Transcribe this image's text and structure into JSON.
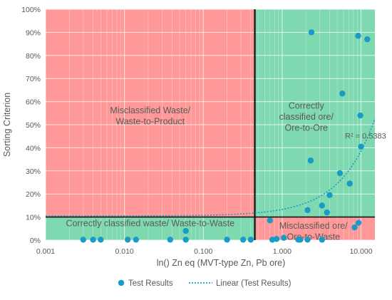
{
  "chart_data": {
    "type": "scatter",
    "xscale": "log",
    "xlim": [
      0.001,
      15
    ],
    "ylim": [
      0,
      100
    ],
    "xticks": [
      0.001,
      0.01,
      0.1,
      1,
      10
    ],
    "xtick_labels": [
      "0.001",
      "0.010",
      "0.100",
      "1.000",
      "10.000"
    ],
    "yticks": [
      0,
      10,
      20,
      30,
      40,
      50,
      60,
      70,
      80,
      90,
      100
    ],
    "ytick_labels": [
      "0%",
      "10%",
      "20%",
      "30%",
      "40%",
      "50%",
      "60%",
      "70%",
      "80%",
      "90%",
      "100%"
    ],
    "xlabel": "ln() Zn eq (MVT-type Zn, Pb ore)",
    "ylabel": "Sorting Criterion",
    "grid": true,
    "x_threshold": 0.45,
    "y_threshold": 10,
    "regions": [
      {
        "label_lines": [
          "Misclassified Waste/",
          "Waste-to-Product"
        ],
        "color": "#FF9999",
        "quadrant": "top-left"
      },
      {
        "label_lines": [
          "Correctly",
          "classified ore/",
          "Ore-to-Ore"
        ],
        "color": "#7FD9B0",
        "quadrant": "top-right"
      },
      {
        "label_lines": [
          "Correctly classified waste/ Waste-to-Waste"
        ],
        "color": "#7FD9B0",
        "quadrant": "bottom-left"
      },
      {
        "label_lines": [
          "Misclassified ore/",
          "Ore-to-Waste"
        ],
        "color": "#FF9999",
        "quadrant": "bottom-right"
      }
    ],
    "series": [
      {
        "name": "Test Results",
        "color": "#1A9BC7",
        "points": [
          [
            0.003,
            0.2
          ],
          [
            0.004,
            0.2
          ],
          [
            0.005,
            0.2
          ],
          [
            0.011,
            0.2
          ],
          [
            0.014,
            0.2
          ],
          [
            0.038,
            0.2
          ],
          [
            0.06,
            0.2
          ],
          [
            0.06,
            4
          ],
          [
            0.2,
            0.2
          ],
          [
            0.32,
            0.2
          ],
          [
            0.4,
            0.2
          ],
          [
            0.7,
            8.5
          ],
          [
            0.75,
            0.2
          ],
          [
            0.85,
            0.5
          ],
          [
            1.05,
            1
          ],
          [
            1.6,
            0.2
          ],
          [
            1.7,
            0.2
          ],
          [
            2.1,
            0.2
          ],
          [
            2.1,
            13
          ],
          [
            2.3,
            34.5
          ],
          [
            2.35,
            90
          ],
          [
            3.2,
            0.2
          ],
          [
            3.2,
            15
          ],
          [
            3.7,
            12
          ],
          [
            4.0,
            19.5
          ],
          [
            5.4,
            29
          ],
          [
            5.8,
            63.5
          ],
          [
            7.2,
            24.5
          ],
          [
            8.3,
            5.5
          ],
          [
            9.2,
            88.5
          ],
          [
            9.3,
            7.5
          ],
          [
            9.8,
            54
          ],
          [
            10.0,
            40.5
          ],
          [
            12.0,
            87
          ]
        ]
      }
    ],
    "trendline": {
      "name": "Linear (Test Results)",
      "type": "linear",
      "r2_label": "R² = 0.5383",
      "a": 10.5,
      "b": 2.81
    },
    "legend_position": "bottom"
  }
}
